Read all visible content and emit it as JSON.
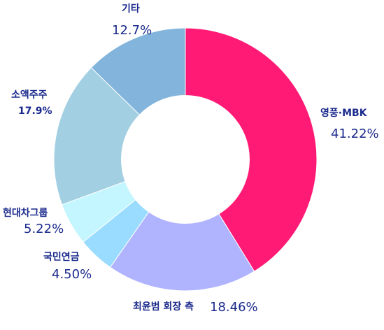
{
  "chart_data": {
    "type": "pie",
    "variant": "donut",
    "title": "",
    "slices": [
      {
        "label": "영풍·MBK",
        "value": 41.22,
        "value_label": "41.22%",
        "color": "#ff1a75"
      },
      {
        "label": "최윤범 회장 측",
        "value": 18.46,
        "value_label": "18.46%",
        "color": "#b0b4ff"
      },
      {
        "label": "국민연금",
        "value": 4.5,
        "value_label": "4.50%",
        "color": "#99dcff"
      },
      {
        "label": "현대차그룹",
        "value": 5.22,
        "value_label": "5.22%",
        "color": "#c4f6ff"
      },
      {
        "label": "소액주주",
        "value": 17.9,
        "value_label": "17.9%",
        "color": "#a2cfe1"
      },
      {
        "label": "기타",
        "value": 12.7,
        "value_label": "12.7%",
        "color": "#82b4dc"
      }
    ]
  }
}
